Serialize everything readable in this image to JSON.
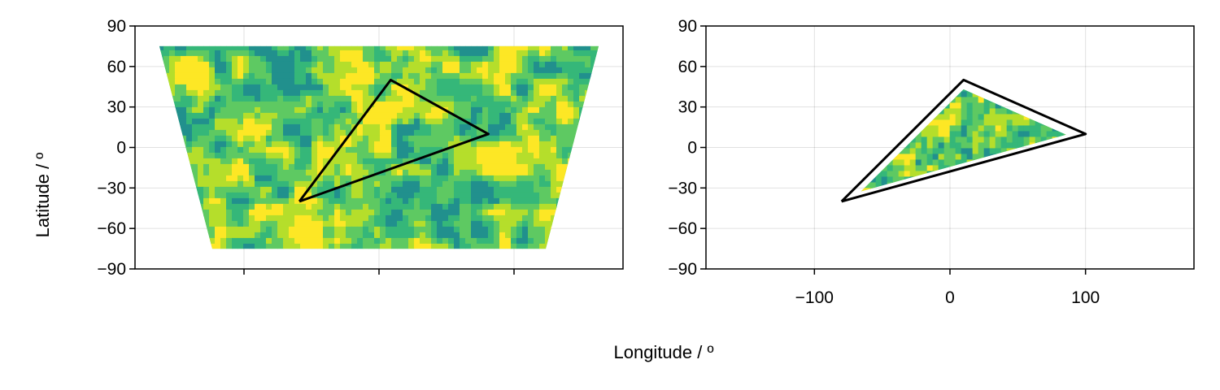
{
  "figure": {
    "xlabel": "Longitude / º",
    "ylabel": "Latitude / º"
  },
  "chart_data": [
    {
      "type": "heatmap",
      "title": "",
      "projection": "trapezoidal (x-tick labels hidden)",
      "grid": true,
      "ylim": [
        -90,
        90
      ],
      "yticks": [
        90,
        60,
        30,
        0,
        -30,
        -60,
        -90
      ],
      "xticks": [
        -100,
        0,
        100
      ],
      "show_xtick_labels": false,
      "field_extent": {
        "lat_range": [
          -75,
          75
        ]
      },
      "colormap": [
        "#21908d",
        "#35b779",
        "#5ec962",
        "#b5de2b",
        "#fde725"
      ],
      "polygon": {
        "lon": [
          -80,
          10,
          100,
          -80
        ],
        "lat": [
          -40,
          50,
          10,
          -40
        ]
      }
    },
    {
      "type": "heatmap",
      "title": "",
      "grid": true,
      "xlim": [
        -180,
        180
      ],
      "ylim": [
        -90,
        90
      ],
      "xticks": [
        -100,
        0,
        100
      ],
      "xtick_labels": [
        "−100",
        "0",
        "100"
      ],
      "yticks": [
        90,
        60,
        30,
        0,
        -30,
        -60,
        -90
      ],
      "colormap": [
        "#21908d",
        "#35b779",
        "#5ec962",
        "#b5de2b",
        "#fde725"
      ],
      "clipped_to_polygon": true,
      "polygon": {
        "lon": [
          -80,
          10,
          100,
          -80
        ],
        "lat": [
          -40,
          50,
          10,
          -40
        ]
      }
    }
  ]
}
